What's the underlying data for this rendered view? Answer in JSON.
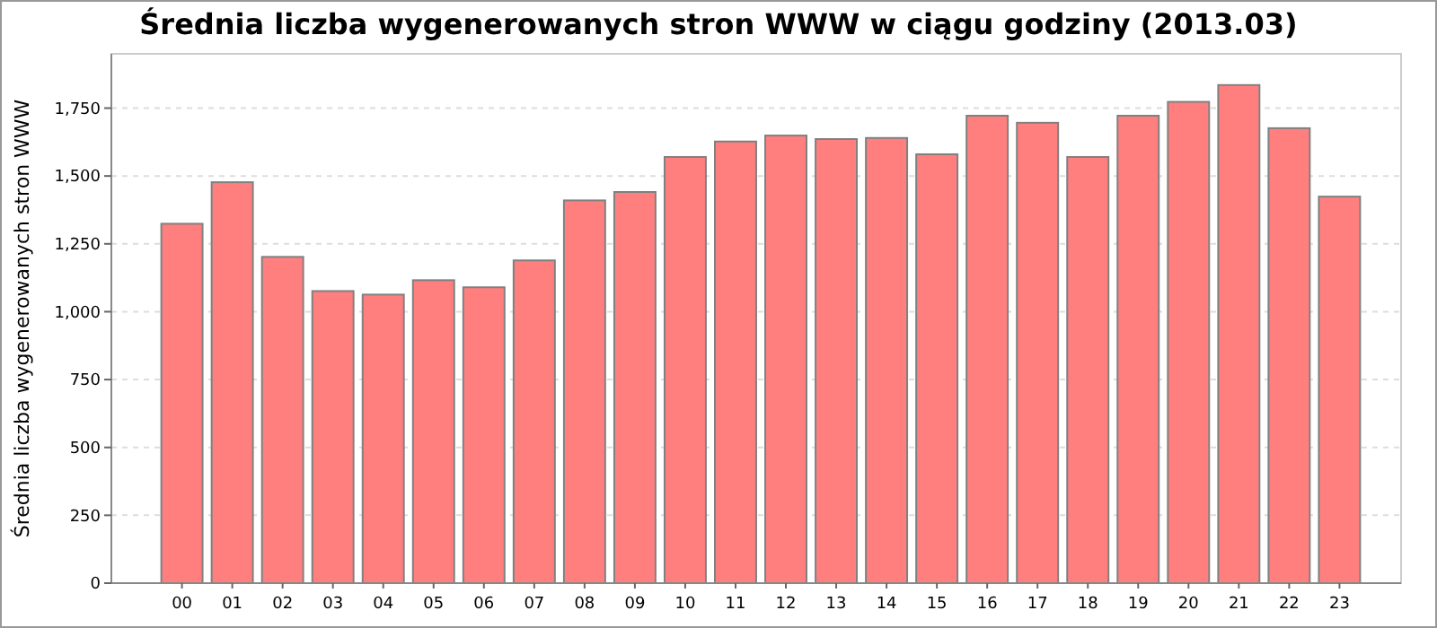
{
  "chart_data": {
    "type": "bar",
    "title": "Średnia liczba wygenerowanych stron WWW w ciągu godziny (2013.03)",
    "ylabel": "Średnia liczba wygenerowanych stron WWW",
    "categories": [
      "00",
      "01",
      "02",
      "03",
      "04",
      "05",
      "06",
      "07",
      "08",
      "09",
      "10",
      "11",
      "12",
      "13",
      "14",
      "15",
      "16",
      "17",
      "18",
      "19",
      "20",
      "21",
      "22",
      "23"
    ],
    "values": [
      1324,
      1477,
      1202,
      1076,
      1063,
      1116,
      1090,
      1189,
      1410,
      1441,
      1570,
      1627,
      1649,
      1636,
      1640,
      1580,
      1722,
      1696,
      1570,
      1722,
      1773,
      1835,
      1676,
      1424
    ],
    "color": "#ff7f7f",
    "ylim": [
      0,
      1950
    ],
    "yticks": [
      0,
      {
        "value": 250,
        "label": "250"
      },
      {
        "value": 500,
        "label": "500"
      },
      {
        "value": 750,
        "label": "750"
      },
      {
        "value": 1000,
        "label": "1,000"
      },
      {
        "value": 1250,
        "label": "1,250"
      },
      {
        "value": 1500,
        "label": "1,500"
      },
      {
        "value": 1750,
        "label": "1,750"
      }
    ],
    "grid": "y"
  }
}
